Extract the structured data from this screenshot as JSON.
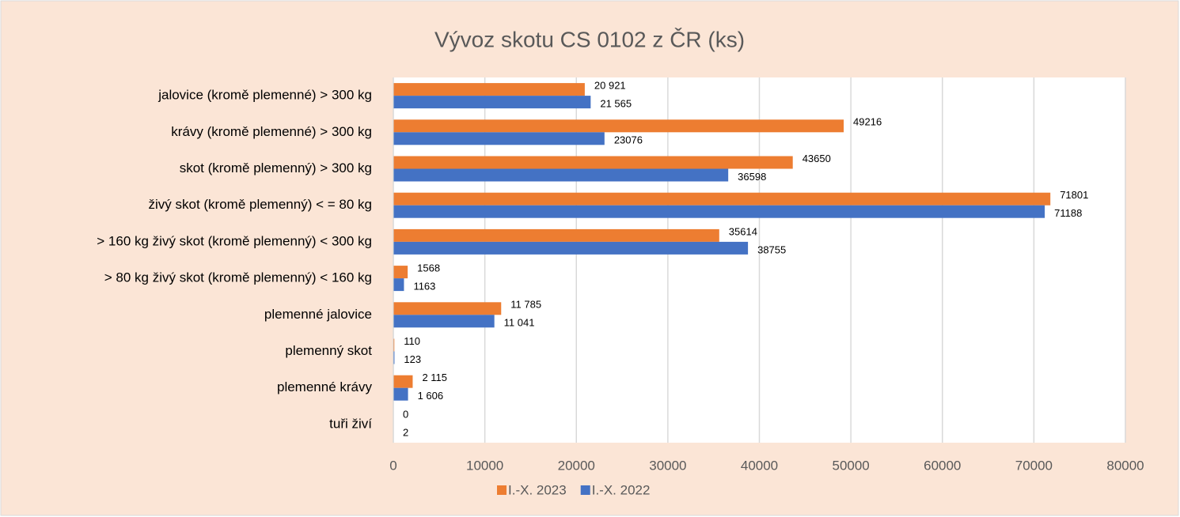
{
  "chart_data": {
    "type": "bar",
    "orientation": "horizontal",
    "title": "Vývoz skotu CS 0102 z ČR (ks)",
    "categories": [
      "jalovice (kromě plemenné) > 300 kg",
      "krávy (kromě plemenné) > 300 kg",
      "skot (kromě plemenný) > 300 kg",
      "živý skot (kromě plemenný) < = 80 kg",
      "> 160 kg živý skot (kromě plemenný) < 300 kg",
      "> 80 kg živý skot (kromě plemenný) < 160 kg",
      "plemenné jalovice",
      "plemenný skot",
      "plemenné krávy",
      "tuři živí"
    ],
    "series": [
      {
        "name": "I.-X. 2023",
        "color": "#ed7d31",
        "values": [
          20921,
          49216,
          43650,
          71801,
          35614,
          1568,
          11785,
          110,
          2115,
          0
        ],
        "value_labels": [
          "20 921",
          "49216",
          "43650",
          "71801",
          "35614",
          "1568",
          "11 785",
          "110",
          "2 115",
          "0"
        ]
      },
      {
        "name": "I.-X. 2022",
        "color": "#4472c4",
        "values": [
          21565,
          23076,
          36598,
          71188,
          38755,
          1163,
          11041,
          123,
          1606,
          2
        ],
        "value_labels": [
          "21 565",
          "23076",
          "36598",
          "71188",
          "38755",
          "1163",
          "11 041",
          "123",
          "1 606",
          "2"
        ]
      }
    ],
    "xlim": [
      0,
      80000
    ],
    "xticks": [
      0,
      10000,
      20000,
      30000,
      40000,
      50000,
      60000,
      70000,
      80000
    ],
    "grid": true,
    "legend": "bottom"
  }
}
